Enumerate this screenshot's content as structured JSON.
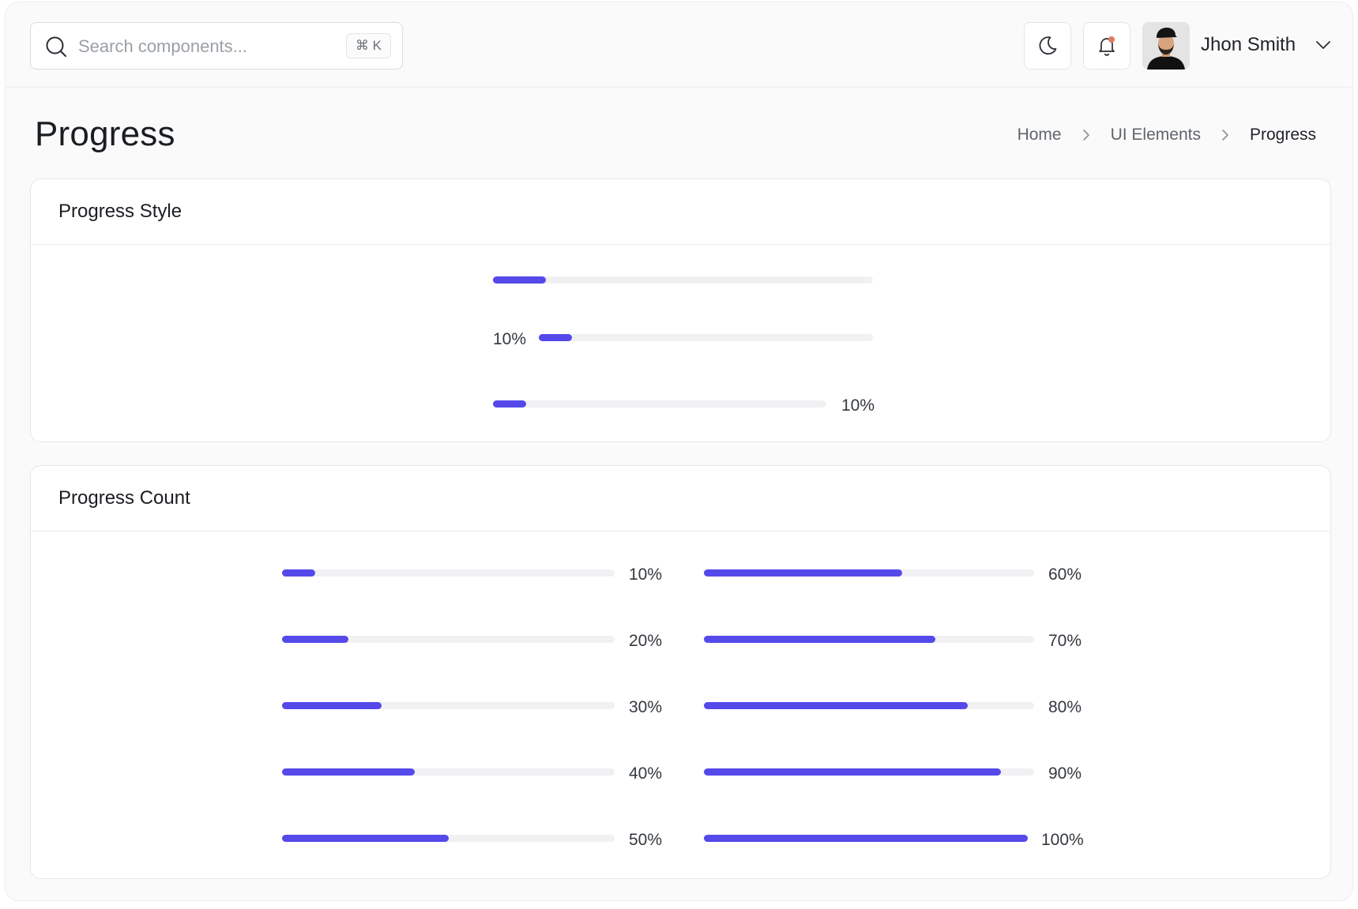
{
  "header": {
    "search": {
      "placeholder": "Search components...",
      "shortcut": "⌘ K"
    },
    "user": {
      "name": "Jhon Smith"
    },
    "notification_dot_color": "#e07a5f"
  },
  "page": {
    "title": "Progress",
    "breadcrumb": [
      "Home",
      "UI Elements",
      "Progress"
    ]
  },
  "accent_color": "#5549ea",
  "progress_style": {
    "title": "Progress Style",
    "bars": [
      {
        "value": 0.14,
        "label": ""
      },
      {
        "value": 0.1,
        "label": "10%"
      },
      {
        "value": 0.1,
        "label": "10%"
      }
    ]
  },
  "progress_count": {
    "title": "Progress Count",
    "left": [
      {
        "value": 0.1,
        "label": "10%"
      },
      {
        "value": 0.2,
        "label": "20%"
      },
      {
        "value": 0.3,
        "label": "30%"
      },
      {
        "value": 0.4,
        "label": "40%"
      },
      {
        "value": 0.5,
        "label": "50%"
      }
    ],
    "right": [
      {
        "value": 0.6,
        "label": "60%"
      },
      {
        "value": 0.7,
        "label": "70%"
      },
      {
        "value": 0.8,
        "label": "80%"
      },
      {
        "value": 0.9,
        "label": "90%"
      },
      {
        "value": 1.0,
        "label": "100%"
      }
    ]
  }
}
